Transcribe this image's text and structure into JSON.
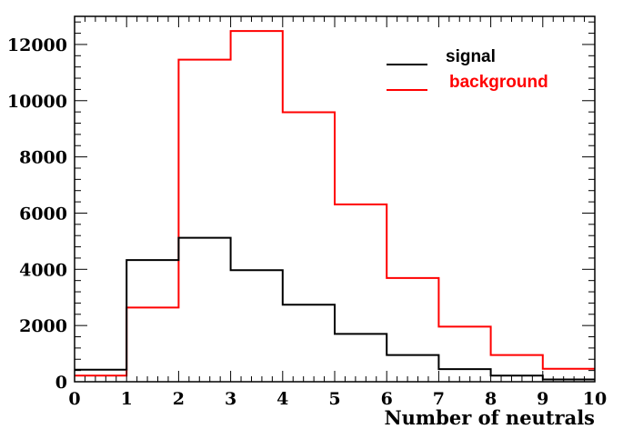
{
  "chart_data": {
    "type": "histogram",
    "xlabel": "Number of neutrals",
    "ylabel": "",
    "xlim": [
      0,
      10
    ],
    "ylim": [
      0,
      13000
    ],
    "x_ticks": [
      0,
      1,
      2,
      3,
      4,
      5,
      6,
      7,
      8,
      9,
      10
    ],
    "y_ticks": [
      0,
      2000,
      4000,
      6000,
      8000,
      10000,
      12000
    ],
    "bin_edges": [
      0,
      1,
      2,
      3,
      4,
      5,
      6,
      7,
      8,
      9,
      10
    ],
    "series": [
      {
        "name": "signal",
        "color": "#000000",
        "values": [
          430,
          4330,
          5120,
          3970,
          2740,
          1700,
          950,
          450,
          220,
          80
        ]
      },
      {
        "name": "background",
        "color": "#ff0000",
        "values": [
          220,
          2640,
          11460,
          12480,
          9590,
          6310,
          3690,
          1960,
          950,
          460
        ]
      }
    ],
    "legend_position": "top-right",
    "grid": false
  }
}
